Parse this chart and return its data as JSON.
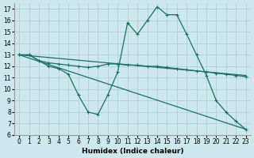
{
  "xlabel": "Humidex (Indice chaleur)",
  "background_color": "#cce8ec",
  "grid_color": "#aacccc",
  "line_color": "#1a6e6a",
  "xlim": [
    -0.5,
    23.5
  ],
  "ylim": [
    6,
    17.5
  ],
  "xticks": [
    0,
    1,
    2,
    3,
    4,
    5,
    6,
    7,
    8,
    9,
    10,
    11,
    12,
    13,
    14,
    15,
    16,
    17,
    18,
    19,
    20,
    21,
    22,
    23
  ],
  "yticks": [
    6,
    7,
    8,
    9,
    10,
    11,
    12,
    13,
    14,
    15,
    16,
    17
  ],
  "line1_x": [
    0,
    1,
    2,
    3,
    4,
    5,
    6,
    7,
    8,
    9,
    10,
    11,
    12,
    13,
    14,
    15,
    16,
    17,
    18,
    19,
    20,
    21,
    22,
    23
  ],
  "line1_y": [
    13,
    13,
    12.5,
    12,
    11.8,
    11.3,
    9.5,
    8.0,
    7.8,
    9.5,
    11.5,
    15.8,
    14.8,
    16.0,
    17.2,
    16.5,
    16.5,
    14.8,
    13.0,
    11.2,
    9.0,
    8.0,
    7.2,
    6.5
  ],
  "line2_x": [
    0,
    1,
    2,
    3,
    4,
    5,
    6,
    7,
    8,
    9,
    10,
    11,
    12,
    13,
    14,
    15,
    16,
    17,
    18,
    19,
    20,
    21,
    22,
    23
  ],
  "line2_y": [
    13,
    13,
    12.5,
    12.3,
    12.2,
    12.1,
    12.0,
    11.9,
    12.0,
    12.2,
    12.2,
    12.1,
    12.1,
    12.0,
    12.0,
    11.9,
    11.8,
    11.7,
    11.6,
    11.5,
    11.4,
    11.3,
    11.2,
    11.1
  ],
  "line3_x": [
    0,
    23
  ],
  "line3_y": [
    13,
    6.5
  ],
  "line4_x": [
    0,
    23
  ],
  "line4_y": [
    13,
    11.2
  ],
  "tick_fontsize": 5.5,
  "xlabel_fontsize": 6.5
}
